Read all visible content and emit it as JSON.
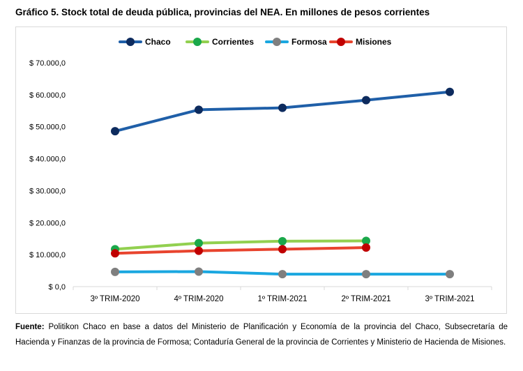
{
  "title": "Gráfico 5. Stock total de deuda pública, provincias del NEA. En millones de pesos corrientes",
  "source_label": "Fuente:",
  "source_text": "Politikon Chaco en base a datos del Ministerio de Planificación y Economía de la provincia del Chaco, Subsecretaría de Hacienda y Finanzas de la provincia de Formosa; Contaduría General de la provincia de Corrientes y Ministerio de Hacienda de Misiones.",
  "chart_data": {
    "type": "line",
    "categories": [
      "3º TRIM-2020",
      "4º TRIM-2020",
      "1º TRIM-2021",
      "2º TRIM-2021",
      "3º TRIM-2021"
    ],
    "ylim": [
      0,
      70000
    ],
    "yticks": [
      0,
      10000,
      20000,
      30000,
      40000,
      50000,
      60000,
      70000
    ],
    "ytick_labels": [
      "$ 0,0",
      "$ 10.000,0",
      "$ 20.000,0",
      "$ 30.000,0",
      "$ 40.000,0",
      "$ 50.000,0",
      "$ 60.000,0",
      "$ 70.000,0"
    ],
    "grid": false,
    "legend": "top",
    "series": [
      {
        "name": "Chaco",
        "line_color": "#1f5fa8",
        "marker_color": "#0d2b5e",
        "values": [
          48600,
          55300,
          55900,
          58300,
          60900
        ]
      },
      {
        "name": "Corrientes",
        "line_color": "#92d050",
        "marker_color": "#1aa84a",
        "values": [
          11700,
          13600,
          14200,
          14300,
          null
        ]
      },
      {
        "name": "Formosa",
        "line_color": "#1aa7e0",
        "marker_color": "#7f7f7f",
        "values": [
          4600,
          4700,
          3900,
          3900,
          3900
        ]
      },
      {
        "name": "Misiones",
        "line_color": "#e8442e",
        "marker_color": "#c00000",
        "values": [
          10400,
          11200,
          11700,
          12200,
          null
        ]
      }
    ]
  }
}
